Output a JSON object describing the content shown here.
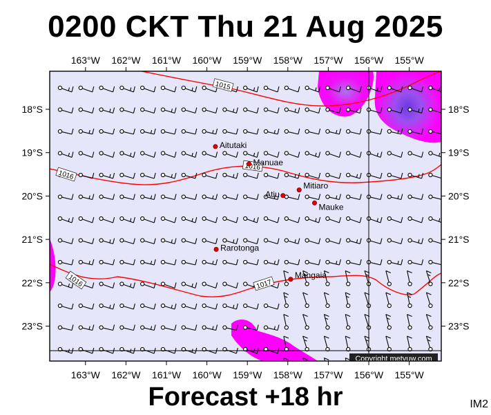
{
  "title": "0200 CKT Thu 21 Aug 2025",
  "subtitle": "Forecast +18 hr",
  "image_tag": "IM2",
  "copyright": "Copyright metvuw.com",
  "colors": {
    "background": "#e6e6fa",
    "isobar": "#ff0000",
    "rain_light": "#ff00ff",
    "rain_mid": "#b060f0",
    "rain_heavy": "#7840e8",
    "place_marker": "#e00000"
  },
  "lon_labels": [
    "163°W",
    "162°W",
    "161°W",
    "160°W",
    "159°W",
    "158°W",
    "157°W",
    "156°W",
    "155°W"
  ],
  "lat_labels": [
    "18°S",
    "19°S",
    "20°S",
    "21°S",
    "22°S",
    "23°S"
  ],
  "isobar_labels": [
    "1015",
    "1016",
    "1016",
    "1016",
    "1017"
  ],
  "places": [
    {
      "name": "Aitutaki",
      "lon": -159.79,
      "lat": -18.86
    },
    {
      "name": "Manuae",
      "lon": -158.96,
      "lat": -19.26
    },
    {
      "name": "Atiu",
      "lon": -158.12,
      "lat": -19.99
    },
    {
      "name": "Mitiaro",
      "lon": -157.72,
      "lat": -19.86
    },
    {
      "name": "Mauke",
      "lon": -157.34,
      "lat": -20.16
    },
    {
      "name": "Rarotonga",
      "lon": -159.77,
      "lat": -21.23
    },
    {
      "name": "Mangaia",
      "lon": -157.93,
      "lat": -21.92
    }
  ]
}
